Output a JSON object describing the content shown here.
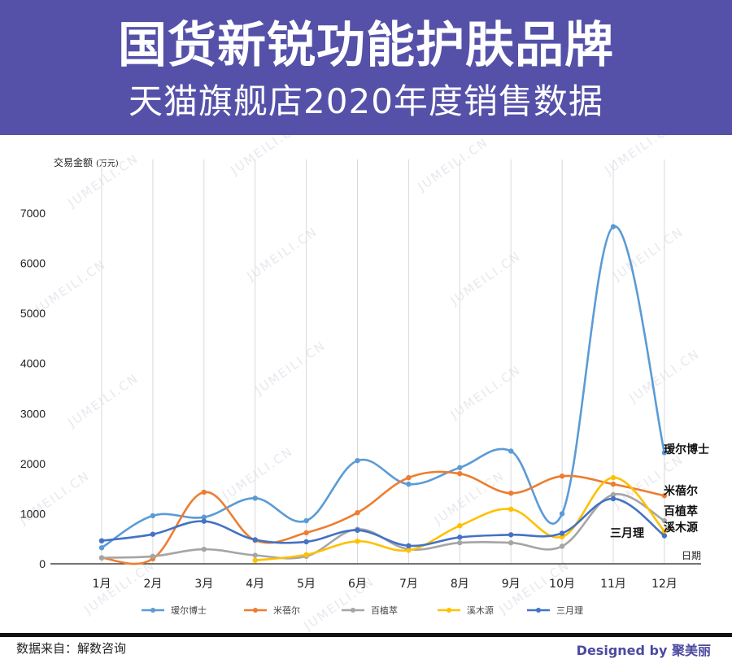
{
  "header": {
    "title": "国货新锐功能护肤品牌",
    "subtitle": "天猫旗舰店2020年度销售数据"
  },
  "footer": {
    "source": "数据来自：解数咨询",
    "credit": "Designed by 聚美丽"
  },
  "watermark": "JUMEILI.CN",
  "colors": {
    "banner": "#5551a9",
    "grid": "#d9d9d9",
    "axis": "#222222"
  },
  "chart_data": {
    "type": "line",
    "ylabel": "交易金额",
    "ylabel_unit": "(万元)",
    "xlabel": "日期",
    "ylim": [
      0,
      7000
    ],
    "yticks": [
      0,
      1000,
      2000,
      3000,
      4000,
      5000,
      6000,
      7000
    ],
    "categories": [
      "1月",
      "2月",
      "3月",
      "4月",
      "5月",
      "6月",
      "7月",
      "8月",
      "9月",
      "10月",
      "11月",
      "12月"
    ],
    "series": [
      {
        "name": "瑷尔博士",
        "color": "#5b9bd5",
        "end_label": "瑷尔博士",
        "values": [
          320,
          960,
          930,
          1310,
          860,
          2060,
          1590,
          1920,
          2250,
          1000,
          6730,
          2220
        ]
      },
      {
        "name": "米蓓尔",
        "color": "#ed7d31",
        "end_label": "米蓓尔",
        "values": [
          120,
          100,
          1430,
          470,
          620,
          1020,
          1720,
          1800,
          1410,
          1750,
          1590,
          1360
        ]
      },
      {
        "name": "百植萃",
        "color": "#a5a5a5",
        "end_label": "百植萃",
        "values": [
          120,
          150,
          290,
          170,
          150,
          690,
          290,
          420,
          420,
          350,
          1380,
          860
        ]
      },
      {
        "name": "溪木源",
        "color": "#ffc000",
        "end_label": "溪木源",
        "values": [
          null,
          null,
          null,
          70,
          180,
          450,
          270,
          760,
          1090,
          540,
          1720,
          650
        ]
      },
      {
        "name": "三月理",
        "color": "#4472c4",
        "end_label": "三月理",
        "values": [
          460,
          590,
          850,
          480,
          440,
          670,
          360,
          530,
          580,
          610,
          1300,
          560
        ]
      }
    ]
  }
}
